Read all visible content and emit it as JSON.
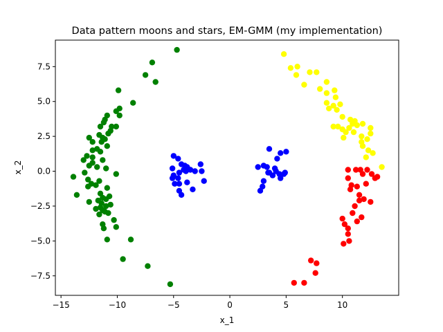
{
  "chart_data": {
    "type": "scatter",
    "title": "Data pattern moons and stars, EM-GMM (my implementation)",
    "xlabel": "x_1",
    "ylabel": "x_2",
    "xlim": [
      -15.5,
      15.0
    ],
    "ylim": [
      -8.9,
      9.4
    ],
    "xticks": [
      -15,
      -10,
      -5,
      0,
      5,
      10
    ],
    "yticks": [
      -7.5,
      -5.0,
      -2.5,
      0.0,
      2.5,
      5.0,
      7.5
    ],
    "xtick_labels": [
      "−15",
      "−10",
      "−5",
      "0",
      "5",
      "10"
    ],
    "ytick_labels": [
      "−7.5",
      "−5.0",
      "−2.5",
      "0.0",
      "2.5",
      "5.0",
      "7.5"
    ],
    "grid": false,
    "series": [
      {
        "color": "#008000",
        "points": [
          [
            -4.7,
            8.7
          ],
          [
            -6.9,
            7.8
          ],
          [
            -7.5,
            6.9
          ],
          [
            -6.6,
            6.4
          ],
          [
            -9.9,
            5.8
          ],
          [
            -8.6,
            4.9
          ],
          [
            -9.8,
            4.5
          ],
          [
            -10.1,
            4.3
          ],
          [
            -9.8,
            4.0
          ],
          [
            -10.9,
            4.0
          ],
          [
            -11.1,
            3.7
          ],
          [
            -11.2,
            3.5
          ],
          [
            -10.5,
            3.2
          ],
          [
            -11.5,
            3.2
          ],
          [
            -10.1,
            3.2
          ],
          [
            -10.6,
            2.9
          ],
          [
            -10.8,
            2.7
          ],
          [
            -11.6,
            2.6
          ],
          [
            -11.3,
            2.4
          ],
          [
            -12.5,
            2.4
          ],
          [
            -11.1,
            2.3
          ],
          [
            -12.2,
            2.1
          ],
          [
            -11.4,
            2.1
          ],
          [
            -10.9,
            1.8
          ],
          [
            -11.8,
            1.6
          ],
          [
            -12.2,
            1.5
          ],
          [
            -11.5,
            1.4
          ],
          [
            -12.7,
            1.1
          ],
          [
            -12.2,
            1.0
          ],
          [
            -13.0,
            0.8
          ],
          [
            -11.3,
            0.8
          ],
          [
            -12.2,
            0.6
          ],
          [
            -12.5,
            0.4
          ],
          [
            -11.8,
            0.3
          ],
          [
            -11.0,
            0.2
          ],
          [
            -12.9,
            -0.1
          ],
          [
            -10.1,
            -0.2
          ],
          [
            -13.9,
            -0.4
          ],
          [
            -12.6,
            -0.6
          ],
          [
            -11.6,
            -0.7
          ],
          [
            -12.3,
            -0.9
          ],
          [
            -11.9,
            -1.0
          ],
          [
            -12.6,
            -1.1
          ],
          [
            -10.9,
            -1.2
          ],
          [
            -11.5,
            -1.6
          ],
          [
            -13.6,
            -1.7
          ],
          [
            -10.7,
            -1.8
          ],
          [
            -11.3,
            -1.9
          ],
          [
            -11.0,
            -2.0
          ],
          [
            -11.7,
            -2.1
          ],
          [
            -12.5,
            -2.2
          ],
          [
            -11.4,
            -2.3
          ],
          [
            -10.6,
            -2.4
          ],
          [
            -11.0,
            -2.5
          ],
          [
            -11.5,
            -2.6
          ],
          [
            -11.9,
            -2.7
          ],
          [
            -11.3,
            -2.8
          ],
          [
            -11.1,
            -2.9
          ],
          [
            -10.8,
            -3.0
          ],
          [
            -11.6,
            -3.1
          ],
          [
            -10.3,
            -3.5
          ],
          [
            -11.3,
            -3.8
          ],
          [
            -10.1,
            -4.0
          ],
          [
            -11.2,
            -4.1
          ],
          [
            -10.9,
            -4.9
          ],
          [
            -8.8,
            -4.9
          ],
          [
            -9.5,
            -6.3
          ],
          [
            -7.3,
            -6.8
          ],
          [
            -5.3,
            -8.1
          ]
        ]
      },
      {
        "color": "#0000ff",
        "points": [
          [
            -5.0,
            1.1
          ],
          [
            -4.6,
            0.9
          ],
          [
            -4.3,
            0.5
          ],
          [
            -5.1,
            0.2
          ],
          [
            -4.0,
            0.4
          ],
          [
            -3.8,
            0.3
          ],
          [
            -3.5,
            0.1
          ],
          [
            -2.6,
            0.5
          ],
          [
            -2.5,
            0.0
          ],
          [
            -3.1,
            0.0
          ],
          [
            -4.1,
            0.1
          ],
          [
            -4.5,
            -0.1
          ],
          [
            -5.0,
            -0.3
          ],
          [
            -4.6,
            -0.5
          ],
          [
            -2.3,
            -0.7
          ],
          [
            -3.8,
            -0.8
          ],
          [
            -4.5,
            -0.9
          ],
          [
            -3.3,
            -1.3
          ],
          [
            -4.5,
            -1.4
          ],
          [
            -4.3,
            -1.7
          ],
          [
            -5.1,
            -0.5
          ],
          [
            -3.9,
            0.0
          ],
          [
            -4.9,
            -0.9
          ],
          [
            3.5,
            1.6
          ],
          [
            4.5,
            1.3
          ],
          [
            5.0,
            1.4
          ],
          [
            4.2,
            0.9
          ],
          [
            3.0,
            0.4
          ],
          [
            2.5,
            0.3
          ],
          [
            3.3,
            0.3
          ],
          [
            4.0,
            0.2
          ],
          [
            4.1,
            0.0
          ],
          [
            3.5,
            -0.1
          ],
          [
            4.4,
            -0.2
          ],
          [
            4.8,
            -0.2
          ],
          [
            3.8,
            -0.3
          ],
          [
            4.5,
            -0.5
          ],
          [
            3.0,
            -0.7
          ],
          [
            4.9,
            -0.1
          ],
          [
            2.9,
            -1.1
          ],
          [
            2.7,
            -1.4
          ],
          [
            3.4,
            -0.1
          ]
        ]
      },
      {
        "color": "#ffff00",
        "points": [
          [
            4.8,
            8.4
          ],
          [
            5.4,
            7.4
          ],
          [
            6.0,
            7.5
          ],
          [
            5.9,
            6.9
          ],
          [
            7.1,
            7.1
          ],
          [
            7.7,
            7.1
          ],
          [
            6.6,
            6.2
          ],
          [
            8.6,
            6.4
          ],
          [
            8.0,
            5.9
          ],
          [
            8.6,
            5.6
          ],
          [
            9.3,
            5.8
          ],
          [
            9.4,
            5.3
          ],
          [
            8.6,
            4.9
          ],
          [
            8.8,
            4.5
          ],
          [
            9.8,
            4.8
          ],
          [
            9.5,
            4.4
          ],
          [
            9.2,
            4.7
          ],
          [
            10.0,
            3.9
          ],
          [
            10.7,
            3.7
          ],
          [
            10.9,
            3.4
          ],
          [
            11.1,
            3.6
          ],
          [
            11.3,
            3.3
          ],
          [
            11.8,
            3.4
          ],
          [
            12.5,
            3.1
          ],
          [
            9.6,
            3.2
          ],
          [
            9.2,
            3.2
          ],
          [
            10.0,
            3.0
          ],
          [
            10.6,
            3.1
          ],
          [
            10.3,
            2.8
          ],
          [
            11.0,
            2.8
          ],
          [
            12.5,
            2.7
          ],
          [
            11.7,
            2.5
          ],
          [
            10.1,
            2.4
          ],
          [
            12.2,
            2.3
          ],
          [
            11.7,
            2.1
          ],
          [
            11.8,
            1.8
          ],
          [
            12.3,
            1.5
          ],
          [
            12.7,
            1.3
          ],
          [
            12.1,
            1.0
          ],
          [
            13.5,
            0.3
          ]
        ]
      },
      {
        "color": "#ff0000",
        "points": [
          [
            10.5,
            0.1
          ],
          [
            11.2,
            0.1
          ],
          [
            11.6,
            0.1
          ],
          [
            12.2,
            0.1
          ],
          [
            11.8,
            -0.2
          ],
          [
            12.6,
            -0.2
          ],
          [
            13.1,
            -0.4
          ],
          [
            12.9,
            -0.5
          ],
          [
            10.5,
            -0.5
          ],
          [
            12.1,
            -0.9
          ],
          [
            10.8,
            -1.0
          ],
          [
            11.3,
            -1.1
          ],
          [
            10.7,
            -1.3
          ],
          [
            11.5,
            -1.7
          ],
          [
            11.9,
            -2.0
          ],
          [
            12.5,
            -2.2
          ],
          [
            11.5,
            -2.1
          ],
          [
            11.1,
            -2.5
          ],
          [
            10.9,
            -3.0
          ],
          [
            11.7,
            -3.3
          ],
          [
            10.0,
            -3.4
          ],
          [
            11.3,
            -3.6
          ],
          [
            10.2,
            -3.8
          ],
          [
            10.5,
            -4.1
          ],
          [
            10.5,
            -4.5
          ],
          [
            10.6,
            -5.0
          ],
          [
            10.1,
            -5.2
          ],
          [
            7.2,
            -6.4
          ],
          [
            7.7,
            -6.6
          ],
          [
            7.6,
            -7.3
          ],
          [
            5.7,
            -8.0
          ],
          [
            6.6,
            -8.0
          ]
        ]
      }
    ]
  }
}
